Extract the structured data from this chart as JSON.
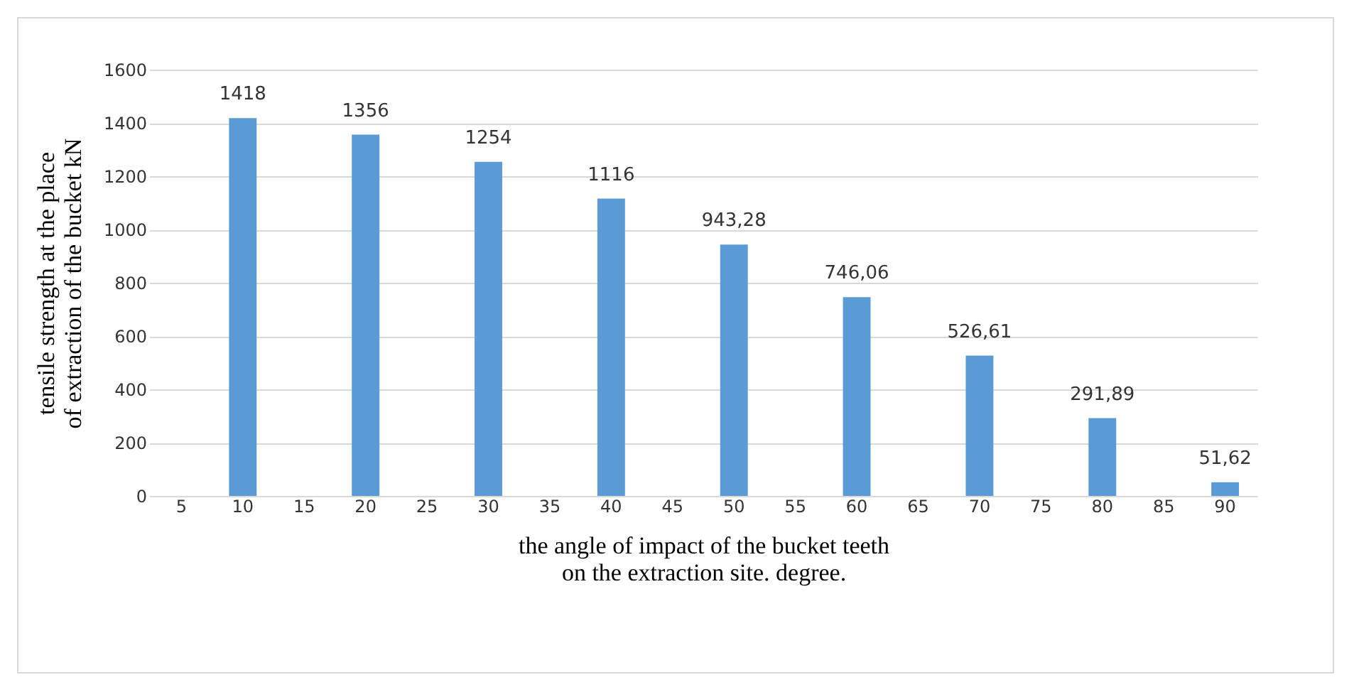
{
  "chart_data": {
    "type": "bar",
    "xlabel": "the angle of impact of the bucket teeth\non the extraction site. degree.",
    "ylabel": "tensile strength at the place\nof extraction of the bucket kN",
    "categories": [
      "5",
      "10",
      "15",
      "20",
      "25",
      "30",
      "35",
      "40",
      "45",
      "50",
      "55",
      "60",
      "65",
      "70",
      "75",
      "80",
      "85",
      "90"
    ],
    "values": [
      null,
      1418,
      null,
      1356,
      null,
      1254,
      null,
      1116,
      null,
      943.28,
      null,
      746.06,
      null,
      526.61,
      null,
      291.89,
      null,
      51.62
    ],
    "value_labels": [
      null,
      "1418",
      null,
      "1356",
      null,
      "1254",
      null,
      "1116",
      null,
      "943,28",
      null,
      "746,06",
      null,
      "526,61",
      null,
      "291,89",
      null,
      "51,62"
    ],
    "color": "#5b9bd5",
    "ylim": [
      0,
      1600
    ],
    "yticks": [
      0,
      200,
      400,
      600,
      800,
      1000,
      1200,
      1400,
      1600
    ],
    "grid": "y"
  }
}
